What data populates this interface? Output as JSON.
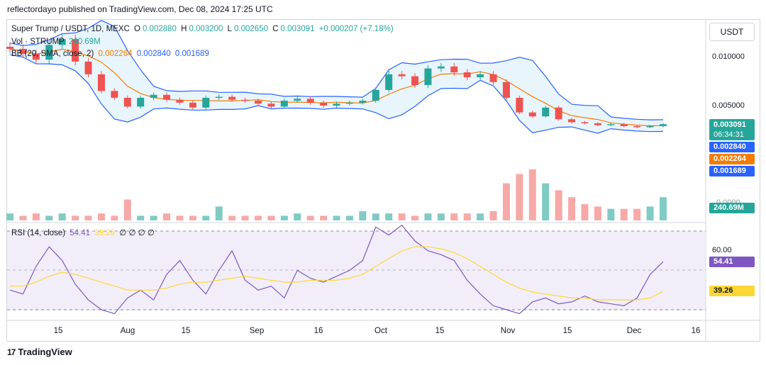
{
  "header": {
    "text": "reflectordayo published on TradingView.com, Dec 08, 2024 17:25 UTC"
  },
  "footer": {
    "logo": "17",
    "brand": "TradingView"
  },
  "currency_button": "USDT",
  "legend": {
    "symbol": "Super Trump / USDT, 1D, MEXC",
    "o_label": "O",
    "o": "0.002880",
    "h_label": "H",
    "h": "0.003200",
    "l_label": "L",
    "l": "0.002650",
    "c_label": "C",
    "c": "0.003091",
    "change": "+0.000207 (+7.18%)",
    "vol_label": "Vol · STRUMP",
    "vol": "240.69M",
    "bb_label": "BB (20, SMA, close, 2)",
    "bb_basis": "0.002264",
    "bb_upper": "0.002840",
    "bb_lower": "0.001689",
    "rsi_label": "RSI (14, close)",
    "rsi": "54.41",
    "rsi_ma": "39.26",
    "rsi_extra": "∅ ∅ ∅ ∅"
  },
  "price_scale": [
    "0.010000",
    "0.005000",
    "0.0000"
  ],
  "price_tags": {
    "last": "0.003091",
    "countdown": "06:34:31",
    "upper": "0.002840",
    "basis": "0.002264",
    "lower": "0.001689",
    "volume": "240.69M"
  },
  "rsi_scale": [
    "60.00"
  ],
  "rsi_tags": {
    "rsi": "54.41",
    "ma": "39.26"
  },
  "colors": {
    "up": "#26a69a",
    "down": "#ef5350",
    "bb_basis": "#f57c00",
    "bb_band": "#2962ff",
    "rsi_line": "#7e57c2",
    "rsi_ma": "#fdd835",
    "vol_up": "#80cbc4",
    "vol_down": "#f7a9a7"
  },
  "chart_data": [
    {
      "type": "candlestick",
      "title": "Super Trump / USDT, 1D, MEXC",
      "x_ticks": [
        "15",
        "Aug",
        "15",
        "Sep",
        "16",
        "Oct",
        "15",
        "Nov",
        "15",
        "Dec",
        "16"
      ],
      "y_ticks": [
        "0.010000",
        "0.005000"
      ],
      "approx_close_series": [
        0.0108,
        0.0103,
        0.0097,
        0.0112,
        0.0118,
        0.0095,
        0.0082,
        0.0065,
        0.0058,
        0.0049,
        0.0058,
        0.0061,
        0.0056,
        0.0053,
        0.0048,
        0.0058,
        0.0059,
        0.0056,
        0.0055,
        0.0052,
        0.0049,
        0.0055,
        0.0057,
        0.0053,
        0.005,
        0.0052,
        0.0053,
        0.0055,
        0.0066,
        0.0082,
        0.008,
        0.0071,
        0.0088,
        0.009,
        0.0084,
        0.0079,
        0.0082,
        0.0074,
        0.0058,
        0.0043,
        0.0039,
        0.0048,
        0.0036,
        0.0033,
        0.0032,
        0.003,
        0.0031,
        0.0029,
        0.0028,
        0.0029,
        0.0031
      ],
      "bollinger": {
        "period": 20,
        "basis_last": 0.002264,
        "upper_last": 0.00284,
        "lower_last": 0.001689
      }
    },
    {
      "type": "bar",
      "title": "Vol · STRUMP",
      "last_value": "240.69M",
      "approx_values": [
        3,
        2,
        3,
        2,
        3,
        2,
        2,
        3,
        2,
        9,
        2,
        2,
        3,
        2,
        2,
        2,
        6,
        2,
        2,
        2,
        2,
        2,
        3,
        2,
        2,
        2,
        2,
        4,
        3,
        3,
        3,
        2,
        3,
        3,
        3,
        3,
        3,
        4,
        16,
        20,
        22,
        16,
        13,
        10,
        7,
        6,
        5,
        5,
        5,
        6,
        10
      ]
    },
    {
      "type": "line",
      "title": "RSI (14, close)",
      "y_ticks": [
        "60.00"
      ],
      "overbought": 70,
      "oversold": 30,
      "series": [
        {
          "name": "RSI",
          "values": [
            40,
            38,
            52,
            62,
            55,
            43,
            35,
            30,
            28,
            36,
            40,
            35,
            48,
            55,
            45,
            38,
            50,
            60,
            45,
            40,
            42,
            36,
            50,
            46,
            44,
            47,
            50,
            55,
            72,
            68,
            73,
            65,
            60,
            58,
            55,
            45,
            38,
            32,
            30,
            28,
            34,
            36,
            33,
            34,
            37,
            34,
            33,
            32,
            36,
            48,
            54.41
          ]
        },
        {
          "name": "MA",
          "values": [
            42,
            42,
            44,
            47,
            49,
            48,
            46,
            44,
            42,
            40,
            40,
            40,
            41,
            43,
            44,
            44,
            45,
            46,
            47,
            46,
            45,
            44,
            44,
            45,
            45,
            45,
            46,
            48,
            52,
            56,
            60,
            62,
            62,
            61,
            59,
            56,
            52,
            48,
            44,
            41,
            39,
            38,
            37,
            36,
            36,
            35,
            35,
            35,
            35,
            36,
            39.26
          ]
        }
      ]
    }
  ]
}
